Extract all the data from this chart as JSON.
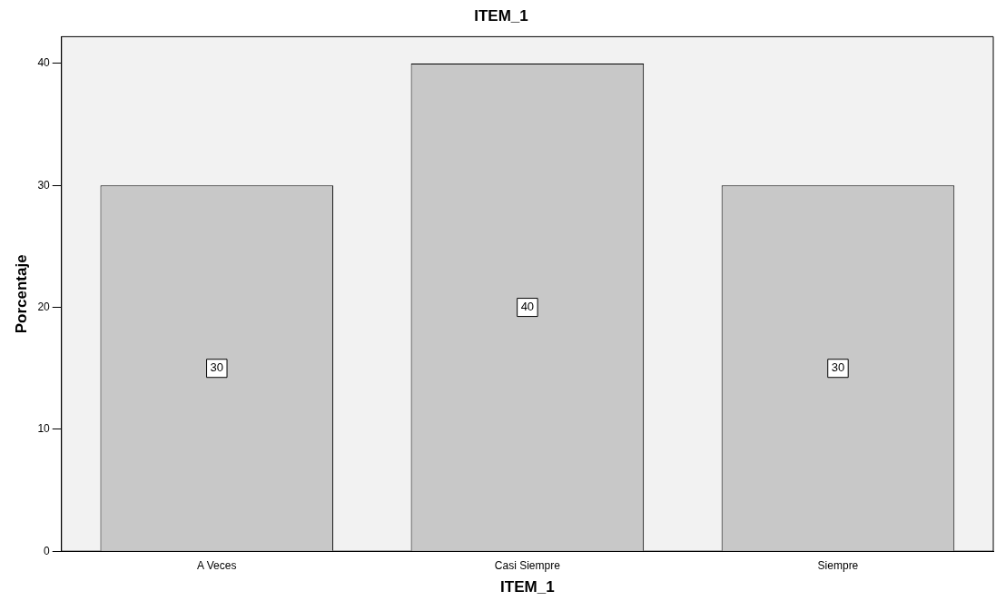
{
  "chart_data": {
    "type": "bar",
    "title": "ITEM_1",
    "xlabel": "ITEM_1",
    "ylabel": "Porcentaje",
    "categories": [
      "A Veces",
      "Casi Siempre",
      "Siempre"
    ],
    "values": [
      30,
      40,
      30
    ],
    "color": "#c8c8c8",
    "ylim": [
      0,
      42.2
    ],
    "yticks": [
      0,
      10,
      20,
      30,
      40
    ],
    "grid": false,
    "legend": false,
    "data_labels": true
  }
}
